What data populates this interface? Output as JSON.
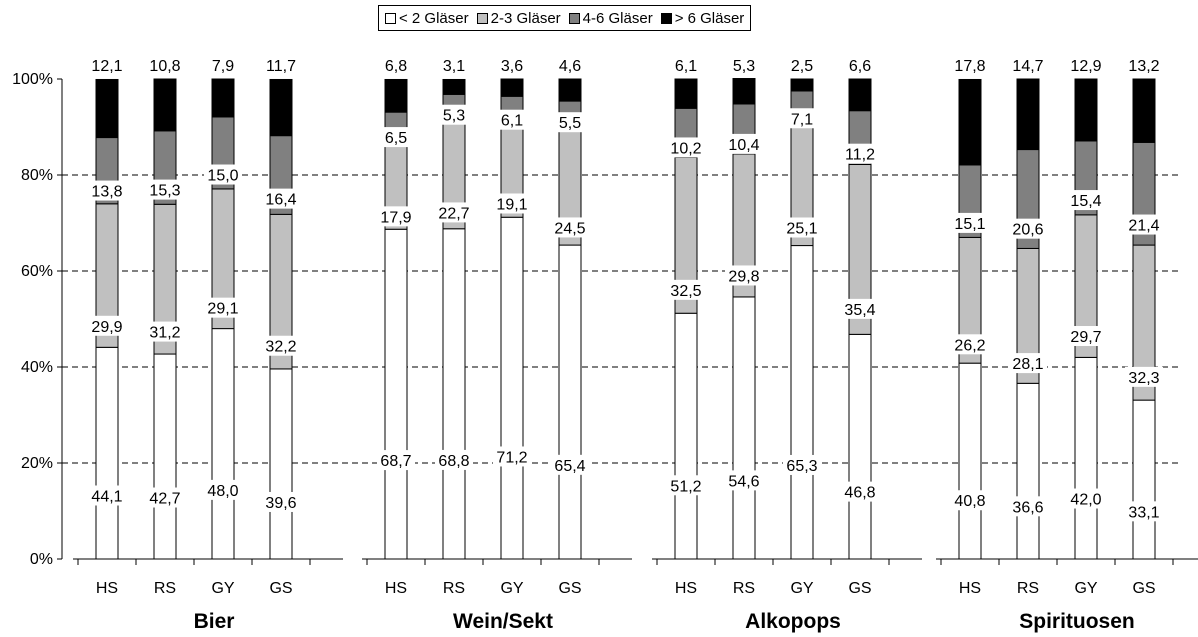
{
  "chart_data": {
    "type": "bar",
    "stacked": true,
    "percent_stacked": true,
    "groups": [
      "Bier",
      "Wein/Sekt",
      "Alkopops",
      "Spirituosen"
    ],
    "categories": [
      "HS",
      "RS",
      "GY",
      "GS"
    ],
    "series": [
      {
        "name": "< 2 Gläser",
        "color": "#ffffff",
        "values": [
          [
            44.1,
            42.7,
            48.0,
            39.6
          ],
          [
            68.7,
            68.8,
            71.2,
            65.4
          ],
          [
            51.2,
            54.6,
            65.3,
            46.8
          ],
          [
            40.8,
            36.6,
            42.0,
            33.1
          ]
        ]
      },
      {
        "name": "2-3 Gläser",
        "color": "#c0c0c0",
        "values": [
          [
            29.9,
            31.2,
            29.1,
            32.2
          ],
          [
            17.9,
            22.7,
            19.1,
            24.5
          ],
          [
            32.5,
            29.8,
            25.1,
            35.4
          ],
          [
            26.2,
            28.1,
            29.7,
            32.3
          ]
        ]
      },
      {
        "name": "4-6 Gläser",
        "color": "#808080",
        "values": [
          [
            13.8,
            15.3,
            15.0,
            16.4
          ],
          [
            6.5,
            5.3,
            6.1,
            5.5
          ],
          [
            10.2,
            10.4,
            7.1,
            11.2
          ],
          [
            15.1,
            20.6,
            15.4,
            21.4
          ]
        ]
      },
      {
        "name": "> 6 Gläser",
        "color": "#000000",
        "values": [
          [
            12.1,
            10.8,
            7.9,
            11.7
          ],
          [
            6.8,
            3.1,
            3.6,
            4.6
          ],
          [
            6.1,
            5.3,
            2.5,
            6.6
          ],
          [
            17.8,
            14.7,
            12.9,
            13.2
          ]
        ]
      }
    ],
    "labels": [
      [
        [
          "44,1",
          "42,7",
          "48,0",
          "39,6"
        ],
        [
          "68,7",
          "68,8",
          "71,2",
          "65,4"
        ],
        [
          "51,2",
          "54,6",
          "65,3",
          "46,8"
        ],
        [
          "40,8",
          "36,6",
          "42,0",
          "33,1"
        ]
      ],
      [
        [
          "29,9",
          "31,2",
          "29,1",
          "32,2"
        ],
        [
          "17,9",
          "22,7",
          "19,1",
          "24,5"
        ],
        [
          "32,5",
          "29,8",
          "25,1",
          "35,4"
        ],
        [
          "26,2",
          "28,1",
          "29,7",
          "32,3"
        ]
      ],
      [
        [
          "13,8",
          "15,3",
          "15,0",
          "16,4"
        ],
        [
          "6,5",
          "5,3",
          "6,1",
          "5,5"
        ],
        [
          "10,2",
          "10,4",
          "7,1",
          "11,2"
        ],
        [
          "15,1",
          "20,6",
          "15,4",
          "21,4"
        ]
      ],
      [
        [
          "12,1",
          "10,8",
          "7,9",
          "11,7"
        ],
        [
          "6,8",
          "3,1",
          "3,6",
          "4,6"
        ],
        [
          "6,1",
          "5,3",
          "2,5",
          "6,6"
        ],
        [
          "17,8",
          "14,7",
          "12,9",
          "13,2"
        ]
      ]
    ],
    "yticks": [
      "0%",
      "20%",
      "40%",
      "60%",
      "80%",
      "100%"
    ],
    "ylim": [
      0,
      100
    ],
    "grid": "dashed horizontal",
    "legend_position": "top"
  }
}
